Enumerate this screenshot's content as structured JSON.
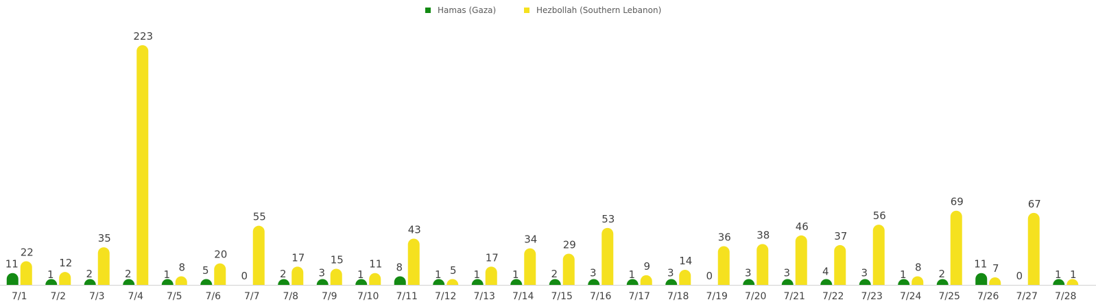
{
  "chart_data": {
    "type": "bar",
    "categories": [
      "7/1",
      "7/2",
      "7/3",
      "7/4",
      "7/5",
      "7/6",
      "7/7",
      "7/8",
      "7/9",
      "7/10",
      "7/11",
      "7/12",
      "7/13",
      "7/14",
      "7/15",
      "7/16",
      "7/17",
      "7/18",
      "7/19",
      "7/20",
      "7/21",
      "7/22",
      "7/23",
      "7/24",
      "7/25",
      "7/26",
      "7/27",
      "7/28"
    ],
    "series": [
      {
        "name": "Hamas (Gaza)",
        "color": "#138a13",
        "values": [
          11,
          1,
          2,
          2,
          1,
          5,
          0,
          2,
          3,
          1,
          8,
          1,
          1,
          1,
          2,
          3,
          1,
          3,
          0,
          3,
          3,
          4,
          3,
          1,
          2,
          11,
          0,
          1
        ]
      },
      {
        "name": "Hezbollah (Southern Lebanon)",
        "color": "#f5e11f",
        "values": [
          22,
          12,
          35,
          223,
          8,
          20,
          55,
          17,
          15,
          11,
          43,
          5,
          17,
          34,
          29,
          53,
          9,
          14,
          36,
          38,
          46,
          37,
          56,
          8,
          69,
          7,
          67,
          1
        ]
      }
    ],
    "ylim": [
      0,
      223
    ],
    "grid": false,
    "legend_position": "top-center",
    "data_labels": true,
    "axis_color": "#d0d0d0"
  }
}
